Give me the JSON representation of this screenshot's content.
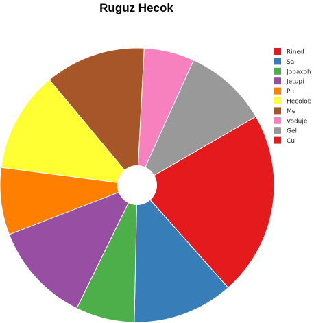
{
  "chart_data": {
    "type": "pie",
    "variant": "donut",
    "title": "Ruguz Hecok",
    "legend_position": "right",
    "slices": [
      {
        "label": "Rined",
        "value": 22.0,
        "color": "#e41a1c"
      },
      {
        "label": "Sa",
        "value": 12.0,
        "color": "#377eb8"
      },
      {
        "label": "Jopaxoh",
        "value": 7.0,
        "color": "#4daf4a"
      },
      {
        "label": "Jetupi",
        "value": 12.0,
        "color": "#984ea3"
      },
      {
        "label": "Pu",
        "value": 8.0,
        "color": "#ff7f00"
      },
      {
        "label": "Hecolob",
        "value": 12.0,
        "color": "#ffff33"
      },
      {
        "label": "Me",
        "value": 12.0,
        "color": "#a65628"
      },
      {
        "label": "Voduje",
        "value": 6.0,
        "color": "#f781bf"
      },
      {
        "label": "Gel",
        "value": 10.0,
        "color": "#999999"
      },
      {
        "label": "Cu",
        "value": 0.0,
        "color": "#e41a1c"
      }
    ]
  }
}
